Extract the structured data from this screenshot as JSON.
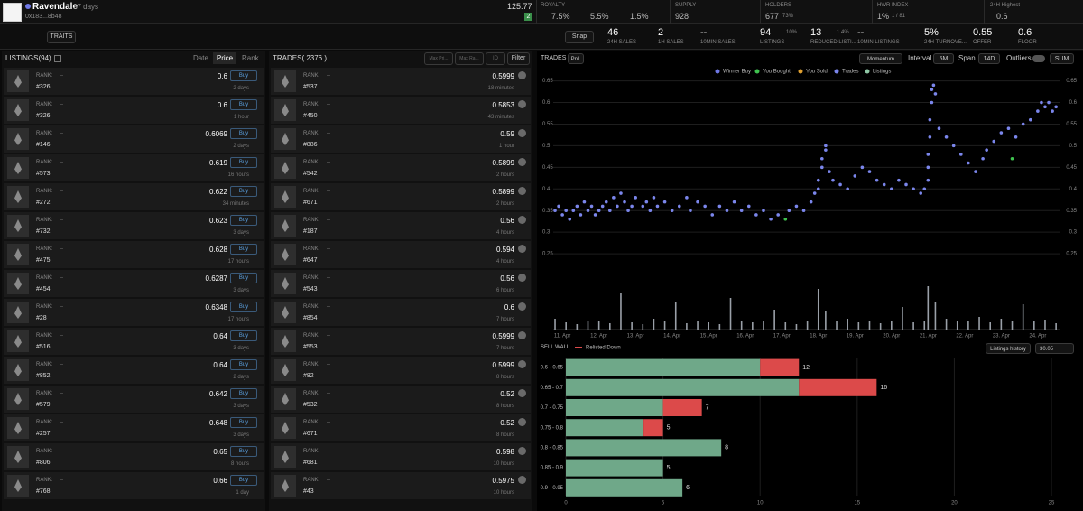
{
  "header": {
    "name": "Ravendale",
    "age": "37 days",
    "address": "0x183...8b48",
    "balance": "125.77",
    "badge": "2",
    "royalty": {
      "label": "ROYALTY",
      "values": [
        "7.5%",
        "5.5%",
        "1.5%"
      ]
    },
    "supply": {
      "label": "SUPPLY",
      "value": "928"
    },
    "holders": {
      "label": "HOLDERS",
      "value": "677",
      "pct": "73%"
    },
    "hwr": {
      "label": "HWR INDEX",
      "value": "1%",
      "rank": "1 / 81"
    },
    "highest": {
      "label": "24H Highest",
      "value": "0.6"
    }
  },
  "toolbar": {
    "traits": "TRAITS",
    "snap": "Snap"
  },
  "stats": [
    {
      "value": "46",
      "label": "24H SALES"
    },
    {
      "value": "2",
      "label": "1H SALES"
    },
    {
      "value": "--",
      "label": "10MIN SALES"
    },
    {
      "value": "94",
      "sub": "10%",
      "label": "LISTINGS"
    },
    {
      "value": "13",
      "sub": "1.4%",
      "label": "REDUCED LISTI..."
    },
    {
      "value": "--",
      "label": "10MIN LISTINGS"
    },
    {
      "value": "5%",
      "label": "24H TURNOVE..."
    },
    {
      "value": "0.55",
      "label": "OFFER"
    },
    {
      "value": "0.6",
      "label": "FLOOR"
    }
  ],
  "listings": {
    "title": "LISTINGS(94)",
    "sorts": [
      "Date",
      "Price",
      "Rank"
    ],
    "rank_label": "RANK:",
    "button": "Buy",
    "rows": [
      {
        "rank": "--",
        "id": "#326",
        "price": 0.6,
        "time": "2 days"
      },
      {
        "rank": "--",
        "id": "#326",
        "price": 0.6,
        "time": "1 hour"
      },
      {
        "rank": "--",
        "id": "#146",
        "price": 0.6069,
        "time": "2 days"
      },
      {
        "rank": "--",
        "id": "#573",
        "price": 0.619,
        "time": "16 hours"
      },
      {
        "rank": "--",
        "id": "#272",
        "price": 0.622,
        "time": "34 minutes"
      },
      {
        "rank": "--",
        "id": "#732",
        "price": 0.623,
        "time": "3 days"
      },
      {
        "rank": "--",
        "id": "#475",
        "price": 0.628,
        "time": "17 hours"
      },
      {
        "rank": "--",
        "id": "#454",
        "price": 0.6287,
        "time": "3 days"
      },
      {
        "rank": "--",
        "id": "#28",
        "price": 0.6348,
        "time": "17 hours"
      },
      {
        "rank": "--",
        "id": "#516",
        "price": 0.64,
        "time": "3 days"
      },
      {
        "rank": "--",
        "id": "#852",
        "price": 0.64,
        "time": "2 days"
      },
      {
        "rank": "--",
        "id": "#579",
        "price": 0.642,
        "time": "3 days"
      },
      {
        "rank": "--",
        "id": "#257",
        "price": 0.648,
        "time": "3 days"
      },
      {
        "rank": "--",
        "id": "#806",
        "price": 0.65,
        "time": "8 hours"
      },
      {
        "rank": "--",
        "id": "#768",
        "price": 0.66,
        "time": "1 day"
      }
    ]
  },
  "trades": {
    "title": "TRADES( 2376 )",
    "filters": [
      "Max Pri...",
      "Max Ra...",
      "ID"
    ],
    "filter_button": "Filter",
    "rank_label": "RANK:",
    "rows": [
      {
        "rank": "--",
        "id": "#537",
        "price": 0.5999,
        "time": "18 minutes"
      },
      {
        "rank": "--",
        "id": "#450",
        "price": 0.5853,
        "time": "43 minutes"
      },
      {
        "rank": "--",
        "id": "#886",
        "price": 0.59,
        "time": "1 hour"
      },
      {
        "rank": "--",
        "id": "#542",
        "price": 0.5899,
        "time": "2 hours"
      },
      {
        "rank": "--",
        "id": "#671",
        "price": 0.5899,
        "time": "2 hours"
      },
      {
        "rank": "--",
        "id": "#187",
        "price": 0.56,
        "time": "4 hours"
      },
      {
        "rank": "--",
        "id": "#647",
        "price": 0.594,
        "time": "4 hours"
      },
      {
        "rank": "--",
        "id": "#543",
        "price": 0.56,
        "time": "6 hours"
      },
      {
        "rank": "--",
        "id": "#854",
        "price": 0.6,
        "time": "7 hours"
      },
      {
        "rank": "--",
        "id": "#553",
        "price": 0.5999,
        "time": "7 hours"
      },
      {
        "rank": "--",
        "id": "#82",
        "price": 0.5999,
        "time": "8 hours"
      },
      {
        "rank": "--",
        "id": "#532",
        "price": 0.52,
        "time": "8 hours"
      },
      {
        "rank": "--",
        "id": "#671",
        "price": 0.52,
        "time": "8 hours"
      },
      {
        "rank": "--",
        "id": "#681",
        "price": 0.598,
        "time": "10 hours"
      },
      {
        "rank": "--",
        "id": "#43",
        "price": 0.5975,
        "time": "10 hours"
      }
    ]
  },
  "chart_panel": {
    "tabs": [
      "TRADES",
      "PnL"
    ],
    "momentum": "Momentum",
    "interval_label": "Interval",
    "interval": "5M",
    "span_label": "Span",
    "span": "14D",
    "outliers": "Outliers",
    "sum": "SUM",
    "sell_wall": "SELL WALL",
    "listings_history": "Listings history",
    "listings_history_value": "30.05"
  },
  "chart_data": [
    {
      "type": "scatter",
      "grid": true,
      "legend": "top",
      "ylim": [
        0.2,
        0.67
      ],
      "yticks": [
        0.25,
        0.3,
        0.35,
        0.4,
        0.45,
        0.5,
        0.55,
        0.6,
        0.65
      ],
      "xlim": [
        10.75,
        24.62
      ],
      "xticks": [
        {
          "value": 11,
          "label": "11. Apr"
        },
        {
          "value": 12,
          "label": "12. Apr"
        },
        {
          "value": 13,
          "label": "13. Apr"
        },
        {
          "value": 14,
          "label": "14. Apr"
        },
        {
          "value": 15,
          "label": "15. Apr"
        },
        {
          "value": 16,
          "label": "16. Apr"
        },
        {
          "value": 17,
          "label": "17. Apr"
        },
        {
          "value": 18,
          "label": "18. Apr"
        },
        {
          "value": 19,
          "label": "19. Apr"
        },
        {
          "value": 20,
          "label": "20. Apr"
        },
        {
          "value": 21,
          "label": "21. Apr"
        },
        {
          "value": 22,
          "label": "22. Apr"
        },
        {
          "value": 23,
          "label": "23. Apr"
        },
        {
          "value": 24,
          "label": "24. Apr"
        }
      ],
      "series": [
        {
          "name": "Winner Buy",
          "color": "#6f78e6",
          "x": [],
          "values": []
        },
        {
          "name": "You Bought",
          "color": "#3fc24f",
          "x": [
            17.1,
            23.3
          ],
          "values": [
            0.33,
            0.47
          ]
        },
        {
          "name": "You Sold",
          "color": "#e0a030",
          "x": [],
          "values": []
        },
        {
          "name": "Trades",
          "color": "#7b86ec",
          "x": [
            10.8,
            10.9,
            11.0,
            11.1,
            11.2,
            11.3,
            11.4,
            11.5,
            11.6,
            11.7,
            11.8,
            11.9,
            12.0,
            12.1,
            12.2,
            12.3,
            12.4,
            12.5,
            12.6,
            12.7,
            12.8,
            12.9,
            13.0,
            13.2,
            13.3,
            13.4,
            13.5,
            13.6,
            13.8,
            14.0,
            14.2,
            14.4,
            14.5,
            14.7,
            14.9,
            15.1,
            15.3,
            15.5,
            15.7,
            15.9,
            16.1,
            16.3,
            16.5,
            16.7,
            16.9,
            17.2,
            17.4,
            17.6,
            17.8,
            17.9,
            18.0,
            18.0,
            18.1,
            18.1,
            18.2,
            18.2,
            18.3,
            18.4,
            18.6,
            18.8,
            19.0,
            19.2,
            19.4,
            19.6,
            19.8,
            20.0,
            20.2,
            20.4,
            20.6,
            20.8,
            20.9,
            21.0,
            21.0,
            21.0,
            21.05,
            21.05,
            21.1,
            21.1,
            21.15,
            21.2,
            21.3,
            21.5,
            21.7,
            21.9,
            22.1,
            22.3,
            22.5,
            22.6,
            22.8,
            23.0,
            23.2,
            23.4,
            23.6,
            23.8,
            24.0,
            24.1,
            24.2,
            24.3,
            24.4,
            24.5
          ],
          "values": [
            0.35,
            0.36,
            0.34,
            0.35,
            0.33,
            0.35,
            0.36,
            0.34,
            0.37,
            0.35,
            0.36,
            0.34,
            0.35,
            0.36,
            0.37,
            0.35,
            0.38,
            0.36,
            0.39,
            0.37,
            0.35,
            0.36,
            0.38,
            0.36,
            0.37,
            0.35,
            0.38,
            0.36,
            0.37,
            0.35,
            0.36,
            0.38,
            0.35,
            0.37,
            0.36,
            0.34,
            0.36,
            0.35,
            0.37,
            0.35,
            0.36,
            0.34,
            0.35,
            0.33,
            0.34,
            0.35,
            0.36,
            0.35,
            0.37,
            0.39,
            0.4,
            0.42,
            0.45,
            0.47,
            0.49,
            0.5,
            0.44,
            0.42,
            0.41,
            0.4,
            0.43,
            0.45,
            0.44,
            0.42,
            0.41,
            0.4,
            0.42,
            0.41,
            0.4,
            0.39,
            0.4,
            0.42,
            0.45,
            0.48,
            0.52,
            0.56,
            0.6,
            0.63,
            0.64,
            0.62,
            0.54,
            0.52,
            0.5,
            0.48,
            0.46,
            0.44,
            0.47,
            0.49,
            0.51,
            0.53,
            0.54,
            0.52,
            0.55,
            0.56,
            0.58,
            0.6,
            0.59,
            0.6,
            0.58,
            0.59
          ]
        },
        {
          "name": "Listings",
          "color": "#8fc7a5",
          "x": [],
          "values": []
        }
      ]
    },
    {
      "type": "bar",
      "color": "#9aa0a8",
      "ylim": [
        0,
        50
      ],
      "x": [
        10.8,
        11.1,
        11.4,
        11.7,
        12.0,
        12.3,
        12.6,
        12.9,
        13.2,
        13.5,
        13.8,
        14.1,
        14.4,
        14.7,
        15.0,
        15.3,
        15.6,
        15.9,
        16.2,
        16.5,
        16.8,
        17.1,
        17.4,
        17.7,
        18.0,
        18.2,
        18.5,
        18.8,
        19.1,
        19.4,
        19.7,
        20.0,
        20.3,
        20.6,
        20.9,
        21.0,
        21.2,
        21.5,
        21.8,
        22.1,
        22.4,
        22.7,
        23.0,
        23.3,
        23.6,
        23.9,
        24.2,
        24.5
      ],
      "values": [
        12,
        8,
        6,
        10,
        9,
        7,
        40,
        8,
        6,
        12,
        9,
        30,
        7,
        10,
        8,
        6,
        35,
        9,
        8,
        10,
        22,
        8,
        6,
        9,
        45,
        20,
        10,
        12,
        8,
        9,
        7,
        10,
        25,
        8,
        9,
        48,
        30,
        12,
        10,
        9,
        14,
        8,
        12,
        10,
        28,
        9,
        11,
        7
      ]
    },
    {
      "type": "hbar",
      "stacked": true,
      "grid": true,
      "legend": "top-left",
      "categories": [
        "0.6 - 0.65",
        "0.65 - 0.7",
        "0.7 - 0.75",
        "0.75 - 0.8",
        "0.8 - 0.85",
        "0.85 - 0.9",
        "0.9 - 0.95"
      ],
      "series": [
        {
          "color": "#6fa889",
          "values": [
            10,
            12,
            5,
            4,
            8,
            5,
            6
          ]
        },
        {
          "name": "Relisted Down",
          "color": "#dc4a4a",
          "values": [
            2,
            4,
            2,
            1,
            0,
            0,
            0
          ]
        }
      ],
      "totals": [
        12,
        16,
        7,
        5,
        8,
        5,
        6
      ],
      "xlim": [
        0,
        25.9
      ],
      "xticks": [
        0,
        5,
        10,
        15,
        20,
        25
      ]
    }
  ]
}
